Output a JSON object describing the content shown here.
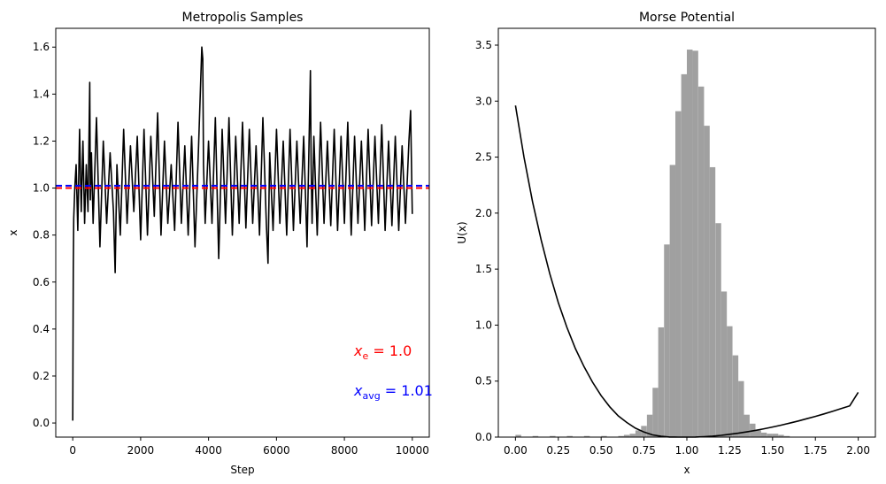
{
  "chart_data": [
    {
      "type": "line",
      "title": "Metropolis Samples",
      "xlabel": "Step",
      "ylabel": "x",
      "xlim": [
        -500,
        10500
      ],
      "ylim": [
        -0.06,
        1.68
      ],
      "xticks": [
        0,
        2000,
        4000,
        6000,
        8000,
        10000
      ],
      "yticks": [
        0.0,
        0.2,
        0.4,
        0.6,
        0.8,
        1.0,
        1.2,
        1.4,
        1.6
      ],
      "ytick_labels": [
        "0.0",
        "0.2",
        "0.4",
        "0.6",
        "0.8",
        "1.0",
        "1.2",
        "1.4",
        "1.6"
      ],
      "grid": false,
      "series": [
        {
          "color": "#000000",
          "x": [
            0,
            5,
            15,
            30,
            60,
            100,
            150,
            200,
            250,
            300,
            350,
            400,
            450,
            500,
            520,
            550,
            600,
            700,
            800,
            900,
            1000,
            1100,
            1200,
            1250,
            1300,
            1400,
            1500,
            1600,
            1700,
            1800,
            1900,
            2000,
            2100,
            2200,
            2300,
            2400,
            2500,
            2600,
            2700,
            2800,
            2900,
            3000,
            3100,
            3200,
            3300,
            3400,
            3500,
            3600,
            3700,
            3800,
            3830,
            3850,
            3900,
            4000,
            4100,
            4200,
            4300,
            4400,
            4500,
            4600,
            4700,
            4800,
            4900,
            5000,
            5100,
            5200,
            5300,
            5400,
            5500,
            5600,
            5700,
            5750,
            5800,
            5900,
            6000,
            6100,
            6200,
            6300,
            6400,
            6500,
            6600,
            6700,
            6800,
            6900,
            7000,
            7020,
            7050,
            7100,
            7200,
            7300,
            7400,
            7500,
            7600,
            7700,
            7800,
            7900,
            8000,
            8100,
            8200,
            8300,
            8400,
            8500,
            8600,
            8700,
            8800,
            8900,
            9000,
            9100,
            9200,
            9300,
            9400,
            9500,
            9600,
            9700,
            9800,
            9900,
            9950,
            10000
          ],
          "y": [
            0.01,
            0.24,
            0.66,
            0.87,
            1.0,
            1.1,
            0.82,
            1.25,
            0.9,
            1.2,
            0.85,
            1.1,
            0.9,
            1.45,
            0.95,
            1.15,
            0.85,
            1.3,
            0.75,
            1.2,
            0.85,
            1.15,
            0.9,
            0.64,
            1.1,
            0.8,
            1.25,
            0.85,
            1.18,
            0.9,
            1.22,
            0.78,
            1.25,
            0.8,
            1.22,
            0.88,
            1.32,
            0.8,
            1.2,
            0.85,
            1.1,
            0.82,
            1.28,
            0.85,
            1.18,
            0.8,
            1.22,
            0.75,
            1.15,
            1.6,
            1.55,
            1.1,
            0.85,
            1.2,
            0.85,
            1.3,
            0.7,
            1.25,
            0.85,
            1.3,
            0.8,
            1.22,
            0.85,
            1.28,
            0.83,
            1.25,
            0.85,
            1.18,
            0.8,
            1.3,
            0.85,
            0.68,
            1.15,
            0.82,
            1.25,
            0.85,
            1.2,
            0.8,
            1.25,
            0.82,
            1.2,
            0.85,
            1.22,
            0.75,
            1.5,
            1.1,
            0.85,
            1.22,
            0.8,
            1.28,
            0.85,
            1.2,
            0.84,
            1.25,
            0.82,
            1.22,
            0.85,
            1.28,
            0.8,
            1.22,
            0.85,
            1.2,
            0.82,
            1.25,
            0.84,
            1.22,
            0.85,
            1.27,
            0.82,
            1.2,
            0.84,
            1.22,
            0.82,
            1.18,
            0.85,
            1.2,
            1.33,
            0.89
          ]
        }
      ],
      "hlines": [
        {
          "y": 1.0,
          "color": "#ff0000",
          "style": "dashed"
        },
        {
          "y": 1.01,
          "color": "#0000ff",
          "style": "dashed"
        }
      ],
      "annotations": [
        {
          "text": "x",
          "sub": "e",
          "rest": " = 1.0",
          "color": "#ff0000"
        },
        {
          "text": "x",
          "sub": "avg",
          "rest": " = 1.01",
          "color": "#0000ff"
        }
      ]
    },
    {
      "type": "bar",
      "title": "Morse Potential",
      "xlabel": "x",
      "ylabel": "U(x)",
      "xlim": [
        -0.1,
        2.1
      ],
      "ylim": [
        0,
        3.65
      ],
      "xticks": [
        0.0,
        0.25,
        0.5,
        0.75,
        1.0,
        1.25,
        1.5,
        1.75,
        2.0
      ],
      "xtick_labels": [
        "0.00",
        "0.25",
        "0.50",
        "0.75",
        "1.00",
        "1.25",
        "1.50",
        "1.75",
        "2.00"
      ],
      "yticks": [
        0.0,
        0.5,
        1.0,
        1.5,
        2.0,
        2.5,
        3.0,
        3.5
      ],
      "ytick_labels": [
        "0.0",
        "0.5",
        "1.0",
        "1.5",
        "2.0",
        "2.5",
        "3.0",
        "3.5"
      ],
      "grid": false,
      "histogram": {
        "color": "#a0a0a0",
        "bin_width": 0.0333,
        "left_edges": [
          0.0,
          0.1,
          0.2,
          0.3,
          0.4,
          0.5,
          0.6,
          0.633,
          0.667,
          0.7,
          0.733,
          0.767,
          0.8,
          0.833,
          0.867,
          0.9,
          0.933,
          0.967,
          1.0,
          1.033,
          1.067,
          1.1,
          1.133,
          1.167,
          1.2,
          1.233,
          1.267,
          1.3,
          1.333,
          1.367,
          1.4,
          1.433,
          1.467,
          1.5,
          1.533,
          1.567
        ],
        "heights": [
          0.02,
          0.01,
          0.01,
          0.01,
          0.01,
          0.01,
          0.01,
          0.02,
          0.03,
          0.06,
          0.1,
          0.2,
          0.44,
          0.98,
          1.72,
          2.43,
          2.91,
          3.24,
          3.46,
          3.45,
          3.13,
          2.78,
          2.41,
          1.91,
          1.3,
          0.99,
          0.73,
          0.5,
          0.2,
          0.12,
          0.06,
          0.04,
          0.03,
          0.03,
          0.02,
          0.01
        ]
      },
      "curve": {
        "color": "#000000",
        "expression": "(1 - exp(-2*(x-1)))^2 * 0.4 / (1 - exp(-2))^2 approx",
        "x": [
          0.0,
          0.05,
          0.1,
          0.15,
          0.2,
          0.25,
          0.3,
          0.35,
          0.4,
          0.45,
          0.5,
          0.55,
          0.6,
          0.65,
          0.7,
          0.75,
          0.8,
          0.85,
          0.9,
          0.95,
          1.0,
          1.05,
          1.1,
          1.15,
          1.2,
          1.25,
          1.3,
          1.35,
          1.4,
          1.45,
          1.5,
          1.55,
          1.6,
          1.65,
          1.7,
          1.75,
          1.8,
          1.85,
          1.9,
          1.95,
          2.0
        ],
        "y": [
          2.96,
          2.5,
          2.1,
          1.76,
          1.46,
          1.2,
          0.98,
          0.79,
          0.63,
          0.49,
          0.37,
          0.27,
          0.19,
          0.13,
          0.08,
          0.045,
          0.02,
          0.007,
          0.001,
          0.0,
          0.0,
          0.001,
          0.004,
          0.009,
          0.016,
          0.025,
          0.035,
          0.047,
          0.06,
          0.074,
          0.09,
          0.107,
          0.125,
          0.144,
          0.164,
          0.185,
          0.207,
          0.23,
          0.254,
          0.279,
          0.4
        ]
      }
    }
  ]
}
